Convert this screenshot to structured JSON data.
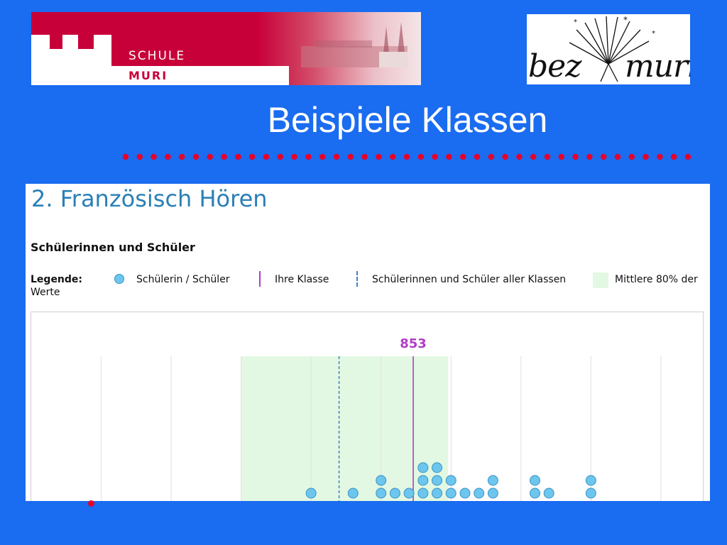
{
  "header": {
    "school_logo": {
      "line1": "SCHULE",
      "line2": "MURI"
    },
    "bez_logo": {
      "left_word": "bez",
      "right_word": "muri"
    }
  },
  "slide": {
    "title": "Beispiele Klassen"
  },
  "panel": {
    "title": "2. Französisch Hören",
    "subtitle": "Schülerinnen und Schüler",
    "legend": {
      "heading": "Legende:",
      "heading_cont": "Werte",
      "student": "Schülerin / Schüler",
      "class_line": "Ihre Klasse",
      "all_classes": "Schülerinnen und Schüler aller Klassen",
      "middle_band": "Mittlere 80% der"
    }
  },
  "colors": {
    "background": "#1a6cf0",
    "brand_red": "#c8003a",
    "dot_fill": "#6cc6ee",
    "class_line": "#b03cc6",
    "all_classes_line": "#4080c0",
    "band": "#e2f8e2",
    "title_blue": "#2a7fb8"
  },
  "chart_data": {
    "type": "scatter",
    "title": "2. Französisch Hören",
    "subtitle": "Schülerinnen und Schüler",
    "class_mean": 853,
    "class_mean_label": "853",
    "all_classes_mean": 800,
    "middle_band": [
      730,
      878
    ],
    "xlim": [
      580,
      1060
    ],
    "grid_x": [
      630,
      680,
      730,
      780,
      830,
      880,
      930,
      980,
      1030
    ],
    "students": [
      {
        "x": 780,
        "stack": 1
      },
      {
        "x": 810,
        "stack": 1
      },
      {
        "x": 830,
        "stack": 2
      },
      {
        "x": 840,
        "stack": 1
      },
      {
        "x": 850,
        "stack": 1
      },
      {
        "x": 860,
        "stack": 3
      },
      {
        "x": 870,
        "stack": 3
      },
      {
        "x": 880,
        "stack": 2
      },
      {
        "x": 890,
        "stack": 1
      },
      {
        "x": 900,
        "stack": 1
      },
      {
        "x": 910,
        "stack": 2
      },
      {
        "x": 940,
        "stack": 2
      },
      {
        "x": 950,
        "stack": 1
      },
      {
        "x": 980,
        "stack": 2
      }
    ]
  }
}
